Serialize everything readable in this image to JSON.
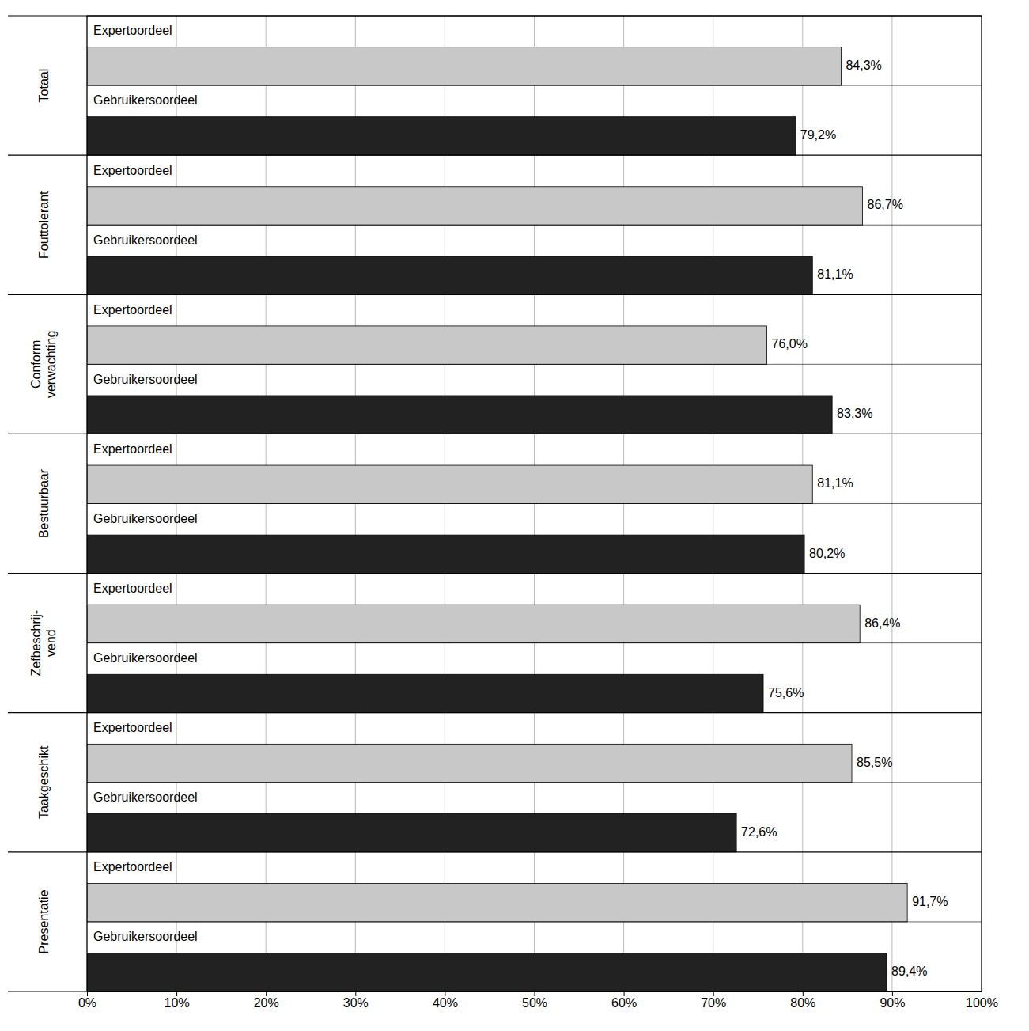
{
  "chart_data": {
    "type": "bar",
    "orientation": "horizontal",
    "categories": [
      "Totaal",
      "Fouttolerant",
      "Conform\nverwachting",
      "Bestuurbaar",
      "Zefbeschrij-\nvend",
      "Taakgeschikt",
      "Presentatie"
    ],
    "series": [
      {
        "name": "Expertoordeel",
        "color": "#c8c8c8",
        "values": [
          84.3,
          86.7,
          76.0,
          81.1,
          86.4,
          85.5,
          91.7
        ],
        "value_labels": [
          "84,3%",
          "86,7%",
          "76,0%",
          "81,1%",
          "86,4%",
          "85,5%",
          "91,7%"
        ]
      },
      {
        "name": "Gebruikersoordeel",
        "color": "#222222",
        "values": [
          79.2,
          81.1,
          83.3,
          80.2,
          75.6,
          72.6,
          89.4
        ],
        "value_labels": [
          "79,2%",
          "81,1%",
          "83,3%",
          "80,2%",
          "75,6%",
          "72,6%",
          "89,4%"
        ]
      }
    ],
    "xlim": [
      0,
      100
    ],
    "xticks": [
      {
        "value": 0,
        "label": "0%"
      },
      {
        "value": 10,
        "label": "10%"
      },
      {
        "value": 20,
        "label": "20%"
      },
      {
        "value": 30,
        "label": "30%"
      },
      {
        "value": 40,
        "label": "40%"
      },
      {
        "value": 50,
        "label": "50%"
      },
      {
        "value": 60,
        "label": "60%"
      },
      {
        "value": 70,
        "label": "70%"
      },
      {
        "value": 80,
        "label": "80%"
      },
      {
        "value": 90,
        "label": "90%"
      },
      {
        "value": 100,
        "label": "100%"
      }
    ],
    "grid": true,
    "data_labels": true
  }
}
